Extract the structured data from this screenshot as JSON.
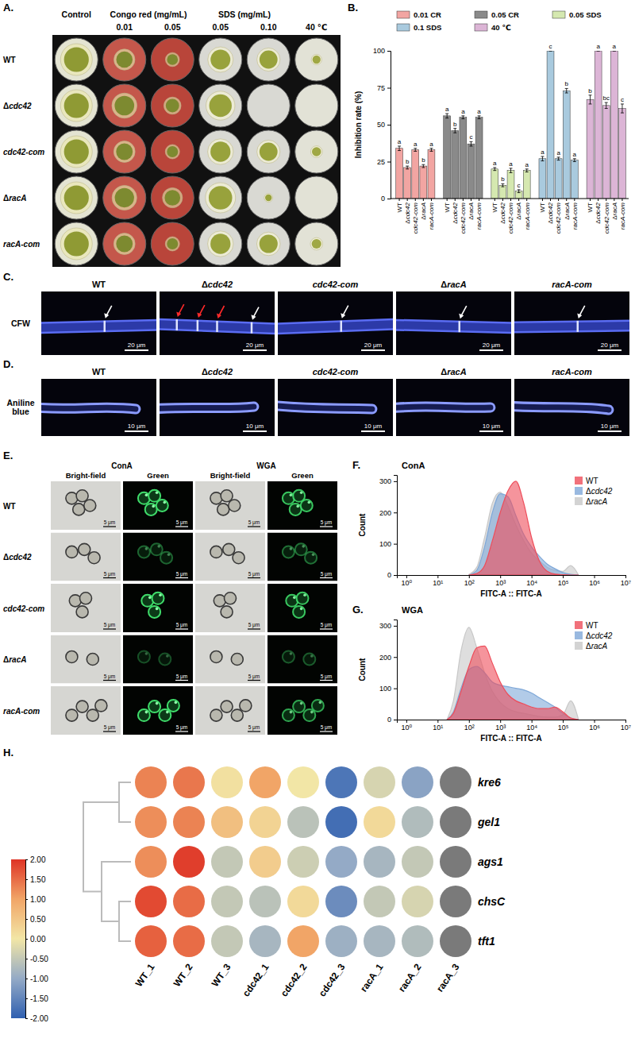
{
  "figure": {
    "strains": [
      "WT",
      "Δcdc42",
      "cdc42-com",
      "ΔracA",
      "racA-com"
    ],
    "A": {
      "panel": "A.",
      "headers": [
        "Control",
        "Congo red (mg/mL)",
        "SDS (mg/mL)",
        "40 ℃"
      ],
      "concentrations": [
        "0.01",
        "0.05",
        "0.05",
        "0.10"
      ]
    },
    "C": {
      "panel": "C.",
      "stain": "CFW",
      "scale": "20 μm"
    },
    "D": {
      "panel": "D.",
      "stain": "Aniline blue",
      "scale": "10 μm"
    },
    "E": {
      "panel": "E.",
      "lectins": [
        "ConA",
        "WGA"
      ],
      "channels": [
        "Bright-field",
        "Green"
      ],
      "scale": "5 μm"
    }
  },
  "chart_data": [
    {
      "panel": "B.",
      "type": "bar",
      "y_label": "Inhibition rate (%)",
      "categories": [
        "WT",
        "Δcdc42",
        "cdc42-com",
        "ΔracA",
        "racA-com"
      ],
      "series": [
        {
          "name": "0.01 CR",
          "color": "#f2a5a2",
          "values": [
            34,
            21,
            33,
            22,
            33
          ],
          "errors": [
            1.5,
            1,
            1,
            1,
            1
          ],
          "annotations": [
            "a",
            "b",
            "a",
            "b",
            "a"
          ]
        },
        {
          "name": "0.05 CR",
          "color": "#8a8a8a",
          "values": [
            56,
            46,
            55,
            37,
            55
          ],
          "errors": [
            1.5,
            1.5,
            1,
            1.5,
            1
          ],
          "annotations": [
            "a",
            "b",
            "a",
            "c",
            "a"
          ]
        },
        {
          "name": "0.05 SDS",
          "color": "#d5e8b0",
          "values": [
            20,
            9,
            19,
            5,
            19
          ],
          "errors": [
            1,
            1,
            1.5,
            1,
            1
          ],
          "annotations": [
            "a",
            "b",
            "a",
            "c",
            "a"
          ]
        },
        {
          "name": "0.1 SDS",
          "color": "#a9cade",
          "values": [
            27,
            100,
            27,
            73,
            26
          ],
          "errors": [
            1.5,
            0,
            1,
            1.5,
            1
          ],
          "annotations": [
            "a",
            "c",
            "a",
            "b",
            "a"
          ]
        },
        {
          "name": "40 ℃",
          "color": "#dcb5d6",
          "values": [
            67,
            100,
            63,
            100,
            61
          ],
          "errors": [
            3,
            0,
            2,
            0,
            3
          ],
          "annotations": [
            "b",
            "a",
            "bc",
            "a",
            "c"
          ]
        }
      ],
      "ylim": [
        0,
        100
      ],
      "yticks": [
        0,
        25,
        50,
        75,
        100
      ],
      "legend": "top"
    },
    {
      "panel": "F.",
      "type": "area",
      "title": "ConA",
      "x_label": "FITC-A :: FITC-A",
      "y_label": "Count",
      "x": [
        100,
        178,
        316,
        562,
        1000,
        1778,
        3162,
        5623,
        10000,
        17783,
        31623,
        56234,
        100000,
        177828,
        316228
      ],
      "series": [
        {
          "name": "WT",
          "color": "#ee4d5a",
          "values": [
            0,
            5,
            30,
            110,
            200,
            270,
            300,
            230,
            120,
            45,
            12,
            3,
            1,
            0,
            0
          ]
        },
        {
          "name": "Δcdc42",
          "color": "#7fa8d8",
          "values": [
            0,
            15,
            90,
            200,
            260,
            250,
            190,
            130,
            90,
            60,
            35,
            20,
            8,
            2,
            0
          ]
        },
        {
          "name": "ΔracA",
          "color": "#c8c8c8",
          "values": [
            2,
            25,
            120,
            230,
            265,
            220,
            160,
            110,
            70,
            45,
            25,
            15,
            12,
            30,
            0
          ]
        }
      ],
      "log": "x",
      "xlim": [
        0.5,
        10000000
      ],
      "xticks": [
        {
          "value": 1,
          "label": "10⁰"
        },
        {
          "value": 10,
          "label": "10¹"
        },
        {
          "value": 100,
          "label": "10²"
        },
        {
          "value": 1000,
          "label": "10³"
        },
        {
          "value": 10000,
          "label": "10⁴"
        },
        {
          "value": 100000,
          "label": "10⁵"
        },
        {
          "value": 1000000,
          "label": "10⁶"
        },
        {
          "value": 10000000,
          "label": "10⁷"
        }
      ],
      "ylim": [
        0,
        320
      ],
      "yticks": [
        0,
        100,
        200,
        300
      ],
      "legend": "top-right"
    },
    {
      "panel": "G.",
      "type": "area",
      "title": "WGA",
      "x_label": "FITC-A :: FITC-A",
      "y_label": "Count",
      "x": [
        20,
        32,
        56,
        100,
        178,
        316,
        562,
        1000,
        1778,
        3162,
        5623,
        10000,
        17783,
        31623,
        56234,
        100000,
        177828,
        316228
      ],
      "series": [
        {
          "name": "WT",
          "color": "#ee4d5a",
          "values": [
            0,
            20,
            90,
            170,
            230,
            235,
            180,
            120,
            80,
            60,
            50,
            40,
            35,
            35,
            40,
            25,
            5,
            0
          ]
        },
        {
          "name": "Δcdc42",
          "color": "#7fa8d8",
          "values": [
            0,
            25,
            100,
            160,
            170,
            150,
            120,
            110,
            105,
            100,
            95,
            85,
            70,
            55,
            40,
            20,
            5,
            0
          ]
        },
        {
          "name": "ΔracA",
          "color": "#c8c8c8",
          "values": [
            0,
            60,
            220,
            295,
            230,
            150,
            90,
            55,
            35,
            25,
            20,
            15,
            10,
            8,
            8,
            15,
            60,
            0
          ]
        }
      ],
      "log": "x",
      "xlim": [
        0.5,
        10000000
      ],
      "xticks": [
        {
          "value": 1,
          "label": "10⁰"
        },
        {
          "value": 10,
          "label": "10¹"
        },
        {
          "value": 100,
          "label": "10²"
        },
        {
          "value": 1000,
          "label": "10³"
        },
        {
          "value": 10000,
          "label": "10⁴"
        },
        {
          "value": 100000,
          "label": "10⁵"
        },
        {
          "value": 1000000,
          "label": "10⁶"
        },
        {
          "value": 10000000,
          "label": "10⁷"
        }
      ],
      "ylim": [
        0,
        320
      ],
      "yticks": [
        0,
        100,
        200,
        300
      ],
      "legend": "top-right"
    },
    {
      "panel": "H.",
      "type": "heatmap",
      "marker": "circle",
      "x": [
        "WT_1",
        "WT_2",
        "WT_3",
        "cdc42_1",
        "cdc42_2",
        "cdc42_3",
        "racA_1",
        "racA_2",
        "racA_3"
      ],
      "y": [
        "kre6",
        "gel1",
        "ags1",
        "chsC",
        "tft1"
      ],
      "values": [
        [
          1.3,
          1.4,
          0.1,
          1.0,
          0.0,
          -1.7,
          -0.3,
          -1.1,
          null
        ],
        [
          1.2,
          1.3,
          0.6,
          0.3,
          -0.6,
          -1.8,
          0.2,
          -0.7,
          null
        ],
        [
          1.2,
          1.9,
          -0.5,
          0.4,
          -0.4,
          -1.0,
          -0.8,
          -0.5,
          null
        ],
        [
          1.8,
          1.5,
          -0.5,
          -0.6,
          0.2,
          -1.4,
          -0.5,
          -0.3,
          null
        ],
        [
          1.6,
          1.5,
          -0.5,
          -0.8,
          1.0,
          -0.9,
          -0.8,
          -0.7,
          null
        ]
      ],
      "colorbar": {
        "range": [
          -2,
          2
        ],
        "ticks": [
          {
            "value": 2,
            "label": "2.00"
          },
          {
            "value": 1.5,
            "label": "1.50"
          },
          {
            "value": 1,
            "label": "1.00"
          },
          {
            "value": 0.5,
            "label": "0.50"
          },
          {
            "value": 0,
            "label": "0.00"
          },
          {
            "value": -0.5,
            "label": "-0.50"
          },
          {
            "value": -1,
            "label": "-1.00"
          },
          {
            "value": -1.5,
            "label": "-1.50"
          },
          {
            "value": -2,
            "label": "-2.00"
          }
        ]
      }
    }
  ]
}
